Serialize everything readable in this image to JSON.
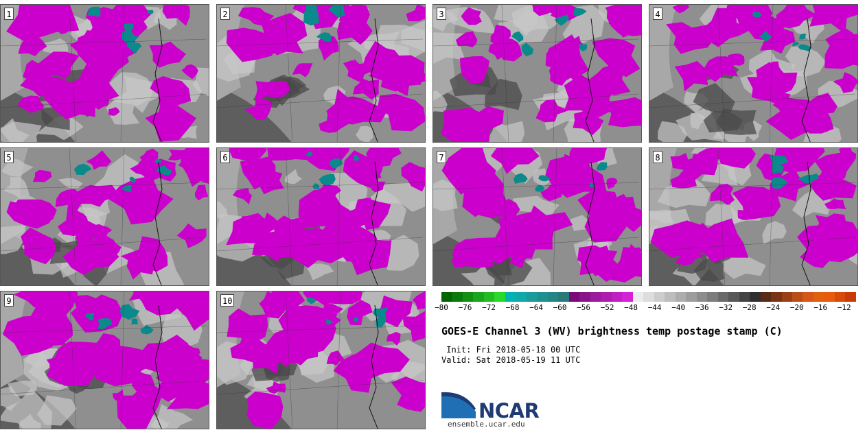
{
  "panels": [
    {
      "num": "1"
    },
    {
      "num": "2"
    },
    {
      "num": "3"
    },
    {
      "num": "4"
    },
    {
      "num": "5"
    },
    {
      "num": "6"
    },
    {
      "num": "7"
    },
    {
      "num": "8"
    },
    {
      "num": "9"
    },
    {
      "num": "10"
    }
  ],
  "colorbar": {
    "ticks": [
      "−80",
      "−76",
      "−72",
      "−68",
      "−64",
      "−60",
      "−56",
      "−52",
      "−48",
      "−44",
      "−40",
      "−36",
      "−32",
      "−28",
      "−24",
      "−20",
      "−16",
      "−12"
    ],
    "range": [
      -80,
      -10
    ],
    "colors": [
      "#006400",
      "#0a7a0a",
      "#129012",
      "#1aa61a",
      "#22bc22",
      "#2ad82a",
      "#00b4b4",
      "#10a8a8",
      "#1a9c9c",
      "#1f9090",
      "#248585",
      "#287a7a",
      "#7a0a7a",
      "#8a128a",
      "#9c1a9c",
      "#ae1eae",
      "#c020c0",
      "#d622d6",
      "#ececec",
      "#dddddd",
      "#cdcdcd",
      "#bdbdbd",
      "#adadad",
      "#9d9d9d",
      "#8d8d8d",
      "#7d7d7d",
      "#6a6a6a",
      "#575757",
      "#434343",
      "#2f2f2f",
      "#5a2a14",
      "#7a3414",
      "#9a4016",
      "#ba4c18",
      "#d4561a",
      "#e06010",
      "#e85a0c",
      "#d84a08",
      "#c83a06"
    ]
  },
  "title": "GOES-E Channel 3 (WV) brightness temp postage stamp (C)",
  "init": " Init: Fri 2018-05-18 00 UTC",
  "valid": "Valid: Sat 2018-05-19 11 UTC",
  "logo": {
    "text": "NCAR",
    "url": "ensemble.ucar.edu",
    "blue": "#1f6fb4",
    "navy": "#1f3b73"
  },
  "map_colors": {
    "moist": "#cc00cc",
    "cold": "#0a8a8a",
    "dry_dark": "#4a4a4a",
    "mid_gray": "#8f8f8f",
    "light_gray": "#c8c8c8",
    "warm": "#b04a2a"
  }
}
